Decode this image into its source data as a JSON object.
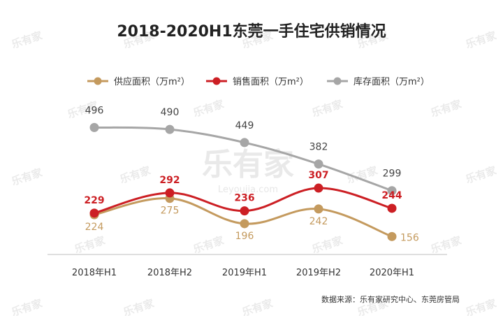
{
  "chart_data": {
    "type": "line",
    "title": "2018-2020H1东莞一手住宅供销情况",
    "categories": [
      "2018年H1",
      "2018年H2",
      "2019年H1",
      "2019年H2",
      "2020年H1"
    ],
    "series": [
      {
        "name": "供应面积（万m²）",
        "values": [
          224,
          275,
          196,
          242,
          156
        ],
        "color": "#c49a5e"
      },
      {
        "name": "销售面积（万m²）",
        "values": [
          229,
          292,
          236,
          307,
          244
        ],
        "color": "#cc1f24"
      },
      {
        "name": "库存面积（万m²）",
        "values": [
          496,
          490,
          449,
          382,
          299
        ],
        "color": "#a6a6a6"
      }
    ],
    "legend_position": "top",
    "grid": false,
    "ylim": [
      100,
      560
    ]
  },
  "source": "数据来源：乐有家研究中心、东莞房管局",
  "watermark": {
    "brand": "乐有家",
    "url": "Leyoujia.com"
  }
}
